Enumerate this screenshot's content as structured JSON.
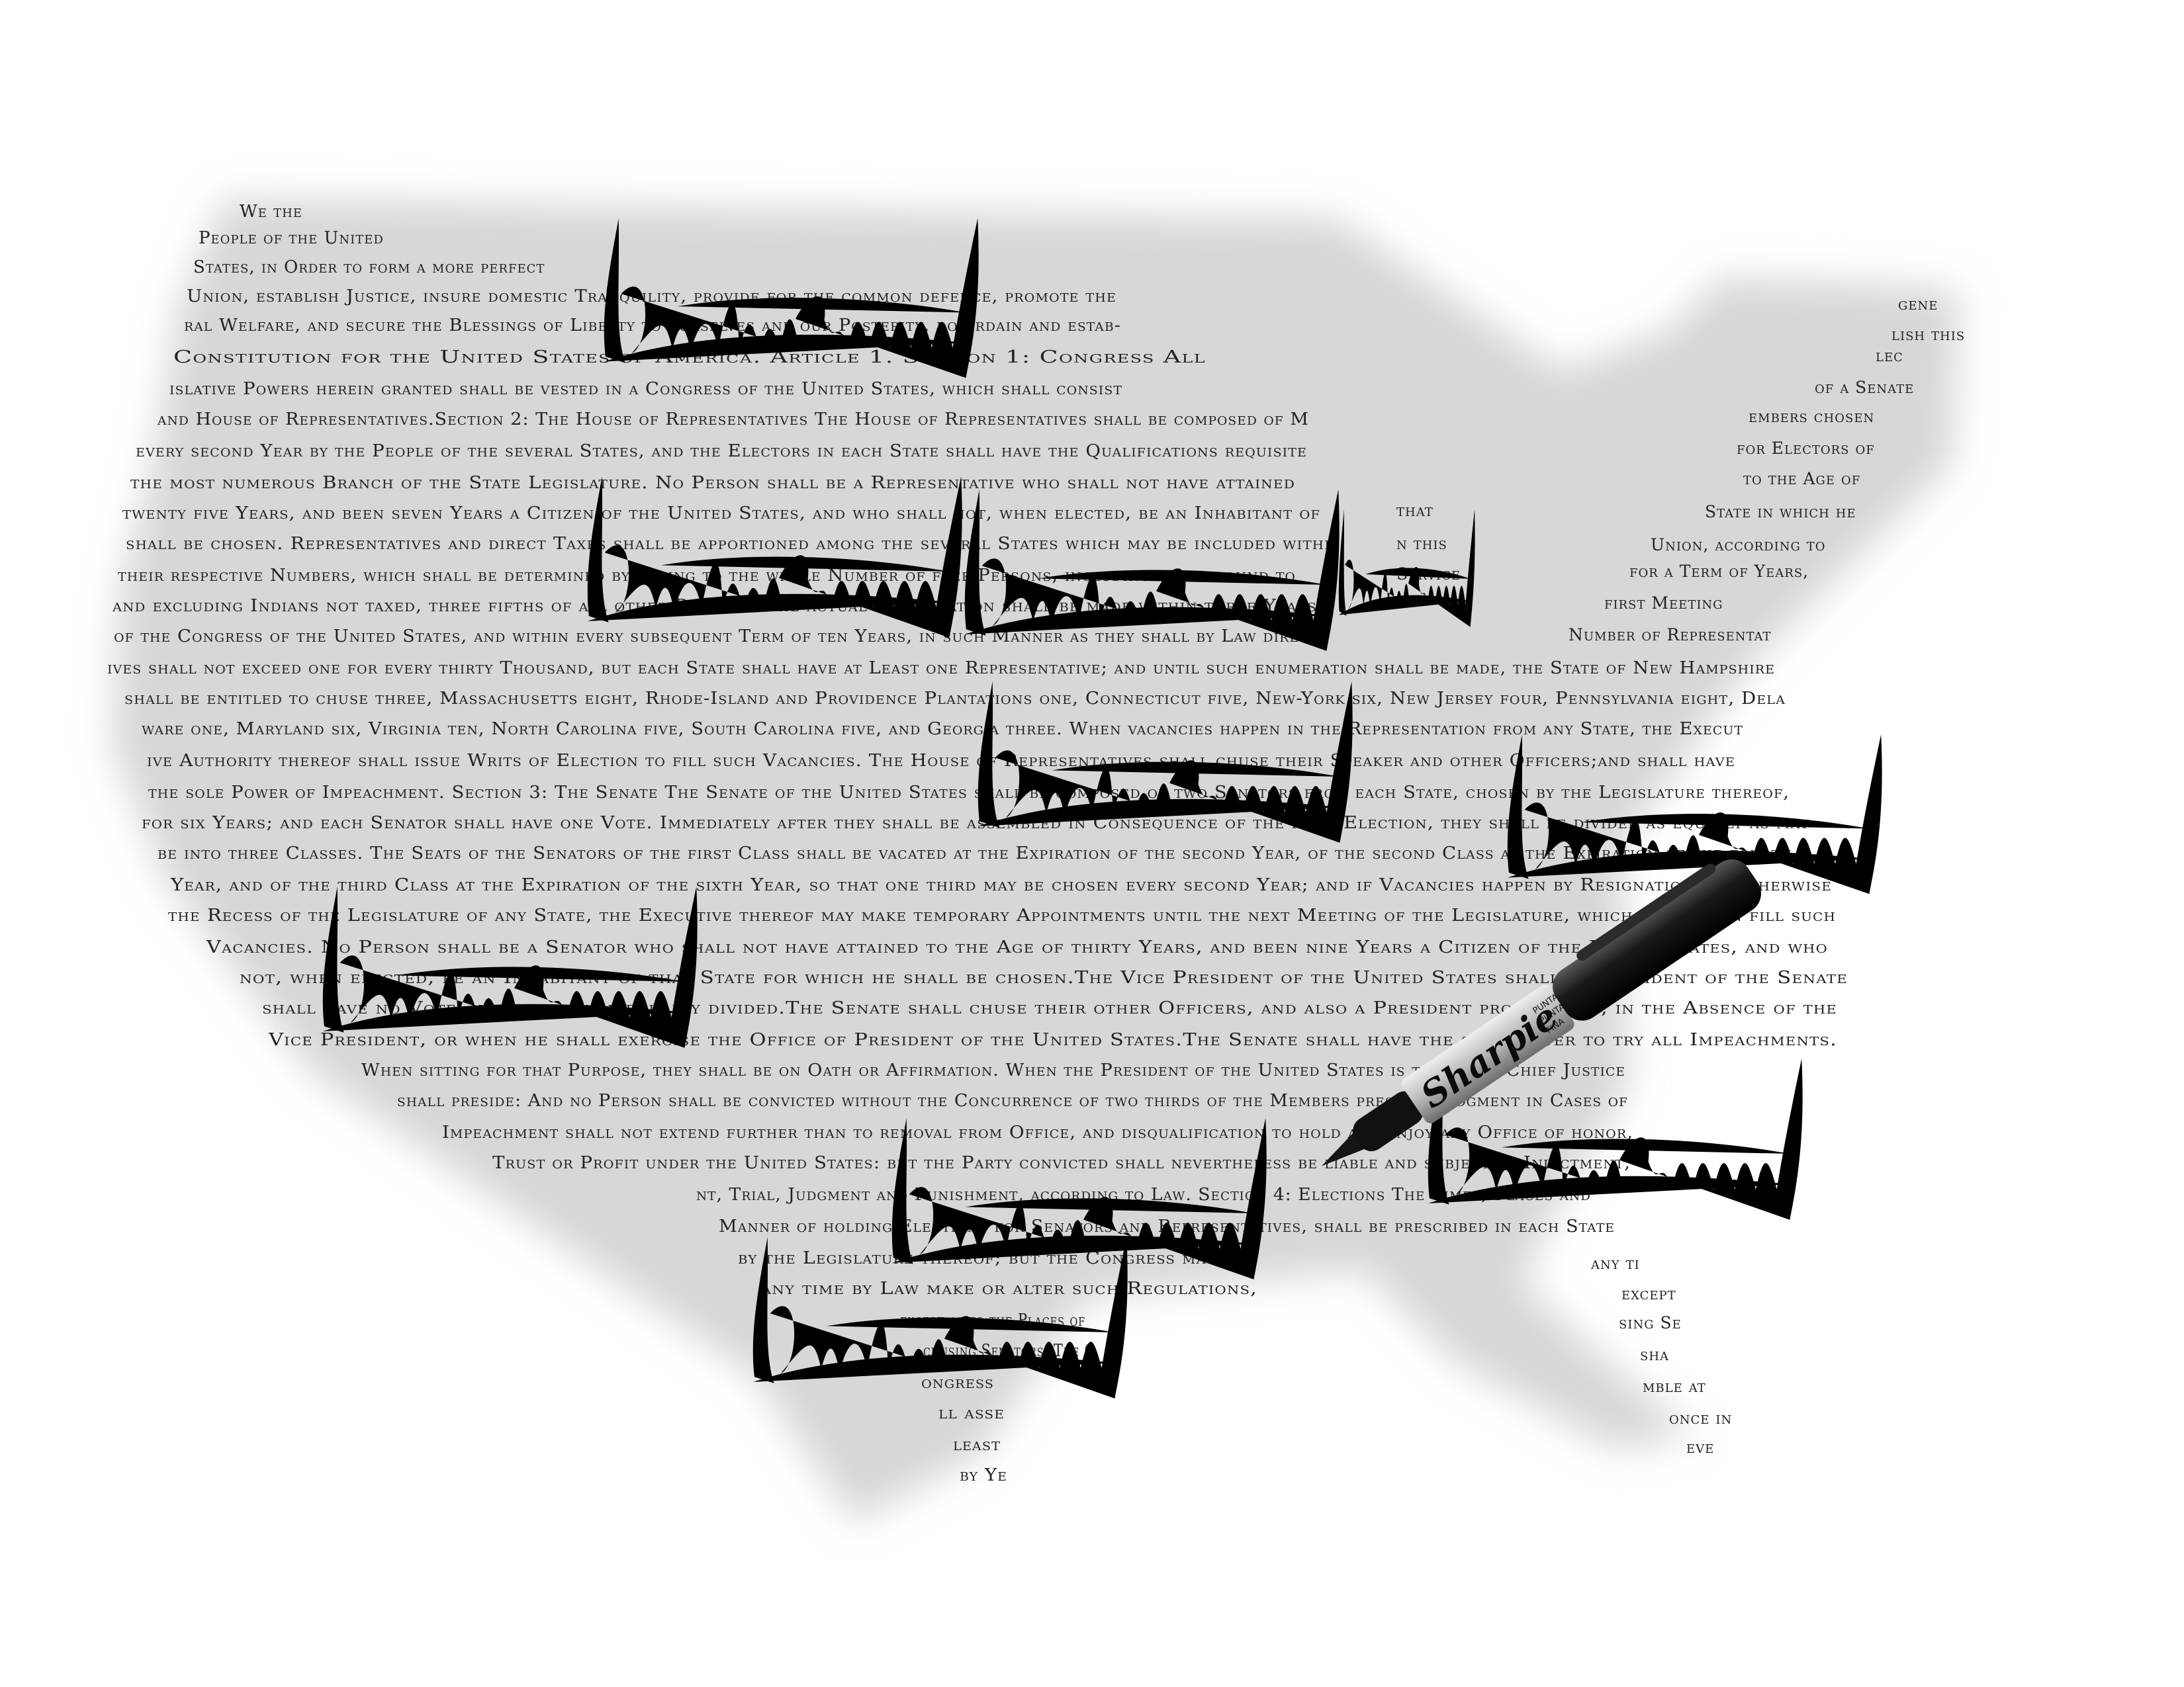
{
  "artwork": {
    "constitution_lines": [
      "We the",
      "People of the United",
      "States, in Order to form a more perfect",
      "Union, establish Justice, insure domestic Tranquility, provide for the common defence, promote the",
      "ral Welfare, and secure the Blessings of Liberty to ourselves and our Posterity, do ordain and estab-",
      "Constitution for the United States of America. Article 1. Section 1: Congress All",
      "islative Powers herein granted shall be vested in a Congress of the United States, which shall consist",
      "and House of Representatives.Section 2: The House of Representatives The House of Representatives shall be composed of M",
      "every second Year by the People of the several States, and the Electors in each State shall have the Qualifications requisite",
      "the most numerous Branch of the State Legislature. No Person shall be a Representative who shall not have attained",
      "twenty five Years, and been seven Years a Citizen of the United States, and who shall not, when elected, be an Inhabitant of",
      "shall be chosen. Representatives and direct Taxes shall be apportioned among the several States which may be included withi",
      "their respective Numbers, which shall be determined by adding to the whole Number of free Persons, including those bound to",
      "and excluding Indians not taxed, three fifths of all other Persons. The actual Enumeration shall be made within three Years",
      "of the Congress of the United States, and within every subsequent Term of ten Years, in such Manner as they shall by Law direct.",
      "ives shall not exceed one for every thirty Thousand, but each State shall have at Least one Representative; and until such enumeration shall be made, the State of New Hampshire",
      "shall be entitled to chuse three, Massachusetts eight, Rhode-Island and Providence Plantations one, Connecticut five, New-York six, New Jersey four, Pennsylvania eight, Dela",
      "ware one, Maryland six, Virginia ten, North Carolina five, South Carolina five, and Georgia three. When vacancies happen in the Representation from any State, the Execut",
      "ive Authority thereof shall issue Writs of Election to fill such Vacancies. The House of Representatives shall chuse their Speaker and other Officers;and shall have",
      "the sole Power of Impeachment. Section 3: The Senate The Senate of the United States shall be composed of two Senators from each State, chosen by the Legislature thereof,",
      "for six Years; and each Senator shall have one Vote. Immediately after they shall be assembled in Consequence of the first Election, they shall be divided as equally as may",
      "be into three Classes. The Seats of the Senators of the first Class shall be vacated at the Expiration of the second Year, of the second Class at the Expiration of the fourth",
      "Year, and of the third Class at the Expiration of the sixth Year, so that one third may be chosen every second Year; and if Vacancies happen by Resignation, or otherwise",
      "the Recess of the Legislature of any State, the Executive thereof may make temporary Appointments until the next Meeting of the Legislature, which shall then fill such",
      "Vacancies. No Person shall be a Senator who shall not have attained to the Age of thirty Years, and been nine Years a Citizen of the United States, and who",
      "not, when elected, be an Inhabitant of that State for which he shall be chosen.The Vice President of the United States shall be President of the Senate",
      "shall have no Vote, unless they be equally divided.The Senate shall chuse their other Officers, and also a President pro tempore, in the Absence of the",
      "Vice President, or when he shall exercise the Office of President of the United States.The Senate shall have the sole Power to try all Impeachments.",
      "When sitting for that Purpose, they shall be on Oath or Affirmation. When the President of the United States is tried, the Chief Justice",
      "shall preside: And no Person shall be convicted without the Concurrence of two thirds of the Members present. Judgment in Cases of",
      "Impeachment shall not extend further than to removal from Office, and disqualification to hold and enjoy any Office of honor,",
      "Trust or Profit under the United States: but the Party convicted shall nevertheless be liable and subject to Indictment,",
      "nt, Trial, Judgment and Punishment, according to Law. Section 4: Elections The Times, Places and",
      "Manner of holding Elections for Senators and Representatives, shall be prescribed in each State",
      "by the Legislature thereof; but the Congress may at",
      "any time by Law make or alter such Regulations,",
      "except as to the Places of",
      "chusing Senators. The C",
      "ongress",
      "ll asse",
      "least",
      "by Ye"
    ],
    "maine_fragment": [
      "gene",
      "lish this",
      "lec",
      "of a Senate",
      "embers chosen",
      "for Electors of",
      "to the Age of",
      "State in which he",
      "Union, according to",
      "for a Term of Years,",
      "first Meeting",
      "Number of Representat"
    ],
    "middle_fragment": [
      "that",
      "n this",
      "Service"
    ],
    "florida_fragment": [
      "any ti",
      "except",
      "sing Se",
      "sha",
      "mble at",
      "once in",
      "eve"
    ],
    "marker_brand": "Sharpie",
    "marker_cap_text": [
      "PUNTA",
      "PUNTA",
      "FINA"
    ]
  }
}
